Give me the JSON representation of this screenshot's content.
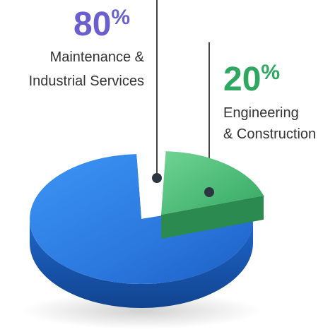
{
  "chart_data": {
    "type": "pie",
    "title": "",
    "slices": [
      {
        "name": "Maintenance & Industrial Services",
        "label_lines": [
          "Maintenance &",
          "Industrial Services"
        ],
        "value": 80,
        "value_text": "80",
        "unit": "%",
        "color": "#2f7fe0",
        "color_dark": "#1a57b0",
        "label_color": "#6b5fd0"
      },
      {
        "name": "Engineering & Construction",
        "label_lines": [
          "Engineering",
          "& Construction"
        ],
        "value": 20,
        "value_text": "20",
        "unit": "%",
        "color": "#4bc07a",
        "color_dark": "#2a7f4a",
        "label_color": "#2ea860"
      }
    ],
    "legend": "none",
    "grid": false
  }
}
